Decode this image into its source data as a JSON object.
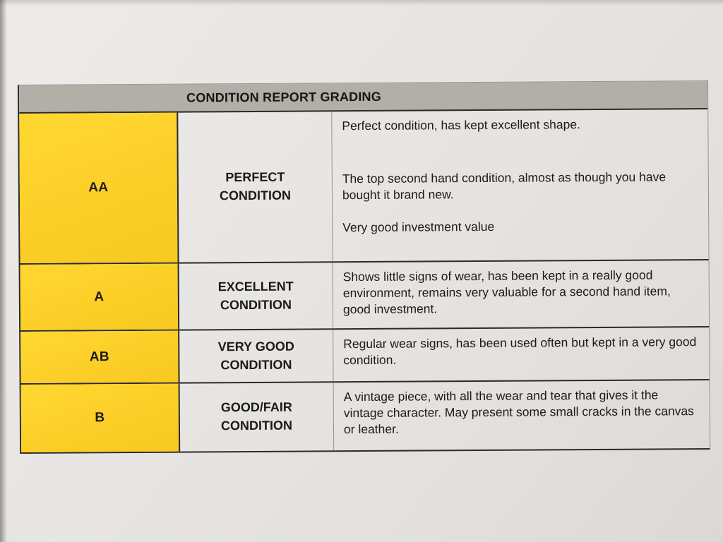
{
  "table": {
    "title": "CONDITION REPORT GRADING",
    "rows": [
      {
        "grade": "AA",
        "condition": "PERFECT CONDITION",
        "descriptions": [
          "Perfect condition, has kept excellent shape.",
          "The top second hand condition, almost as though you have bought it brand new.",
          "Very good investment value"
        ]
      },
      {
        "grade": "A",
        "condition": "EXCELLENT CONDITION",
        "descriptions": [
          "Shows little signs of wear, has been kept in a really good environment, remains very valuable for a second hand item, good investment."
        ]
      },
      {
        "grade": "AB",
        "condition": "VERY GOOD CONDITION",
        "descriptions": [
          "Regular wear signs, has been used often but kept in a very good condition."
        ]
      },
      {
        "grade": "B",
        "condition": "GOOD/FAIR CONDITION",
        "descriptions": [
          "A vintage piece, with all the wear and tear that gives it the vintage character. May present some small cracks in the canvas or leather."
        ]
      }
    ],
    "colors": {
      "header_bg": "#b2afa9",
      "grade_bg": "#fccf28",
      "border_dark": "#2c2a27",
      "text": "#1c1b1a"
    }
  }
}
